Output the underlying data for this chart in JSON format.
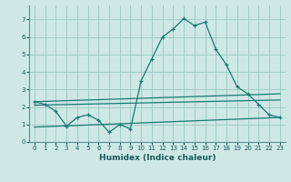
{
  "title": "",
  "xlabel": "Humidex (Indice chaleur)",
  "ylabel": "",
  "background_color": "#cde8e5",
  "grid_color": "#9dc8c4",
  "line_color": "#1a7a6e",
  "xlim": [
    -0.5,
    23.5
  ],
  "ylim": [
    0,
    7.8
  ],
  "xticks": [
    0,
    1,
    2,
    3,
    4,
    5,
    6,
    7,
    8,
    9,
    10,
    11,
    12,
    13,
    14,
    15,
    16,
    17,
    18,
    19,
    20,
    21,
    22,
    23
  ],
  "yticks": [
    0,
    1,
    2,
    3,
    4,
    5,
    6,
    7
  ],
  "series1_x": [
    0,
    1,
    2,
    3,
    4,
    5,
    6,
    7,
    8,
    9,
    10,
    11,
    12,
    13,
    14,
    15,
    16,
    17,
    18,
    19,
    20,
    21,
    22,
    23
  ],
  "series1_y": [
    2.3,
    2.15,
    1.75,
    0.9,
    1.4,
    1.55,
    1.25,
    0.55,
    1.0,
    0.75,
    3.5,
    4.75,
    6.0,
    6.45,
    7.05,
    6.65,
    6.85,
    5.3,
    4.4,
    3.15,
    2.75,
    2.15,
    1.55,
    1.4
  ],
  "series2_x": [
    0,
    23
  ],
  "series2_y": [
    2.3,
    2.75
  ],
  "series3_x": [
    0,
    23
  ],
  "series3_y": [
    2.1,
    2.4
  ],
  "series4_x": [
    0,
    23
  ],
  "series4_y": [
    0.85,
    1.4
  ],
  "xlabel_fontsize": 6.5,
  "tick_fontsize": 5.0
}
